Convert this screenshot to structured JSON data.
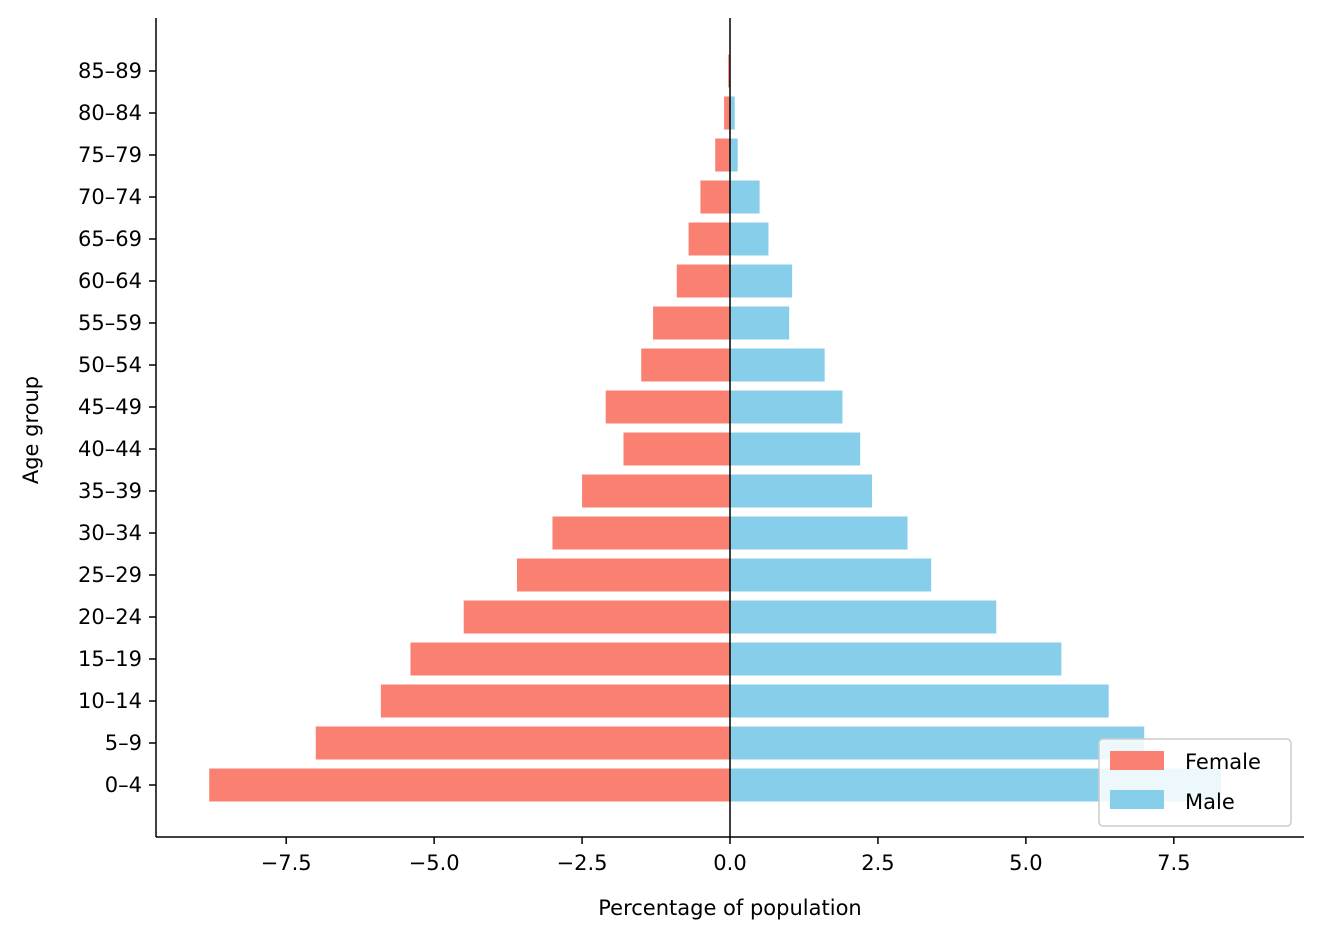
{
  "chart_data": {
    "type": "bar",
    "orientation": "horizontal",
    "title": "",
    "xlabel": "Percentage of population",
    "ylabel": "Age group",
    "categories": [
      "0–4",
      "5–9",
      "10–14",
      "15–19",
      "20–24",
      "25–29",
      "30–34",
      "35–39",
      "40–44",
      "45–49",
      "50–54",
      "55–59",
      "60–64",
      "65–69",
      "70–74",
      "75–79",
      "80–84",
      "85–89"
    ],
    "series": [
      {
        "name": "Female",
        "color": "#fa8072",
        "values": [
          -8.8,
          -7.0,
          -5.9,
          -5.4,
          -4.5,
          -3.6,
          -3.0,
          -2.5,
          -1.8,
          -2.1,
          -1.5,
          -1.3,
          -0.9,
          -0.7,
          -0.5,
          -0.25,
          -0.1,
          -0.03
        ]
      },
      {
        "name": "Male",
        "color": "#87ceeb",
        "values": [
          8.3,
          7.0,
          6.4,
          5.6,
          4.5,
          3.4,
          3.0,
          2.4,
          2.2,
          1.9,
          1.6,
          1.0,
          1.05,
          0.65,
          0.5,
          0.13,
          0.08,
          0.01
        ]
      }
    ],
    "xlim": [
      -9.7,
      9.7
    ],
    "xticks": [
      -7.5,
      -5.0,
      -2.5,
      0.0,
      2.5,
      5.0,
      7.5
    ],
    "xtick_labels": [
      "−7.5",
      "−5.0",
      "−2.5",
      "0.0",
      "2.5",
      "5.0",
      "7.5"
    ],
    "grid": false,
    "legend_position": "bottom-right"
  }
}
